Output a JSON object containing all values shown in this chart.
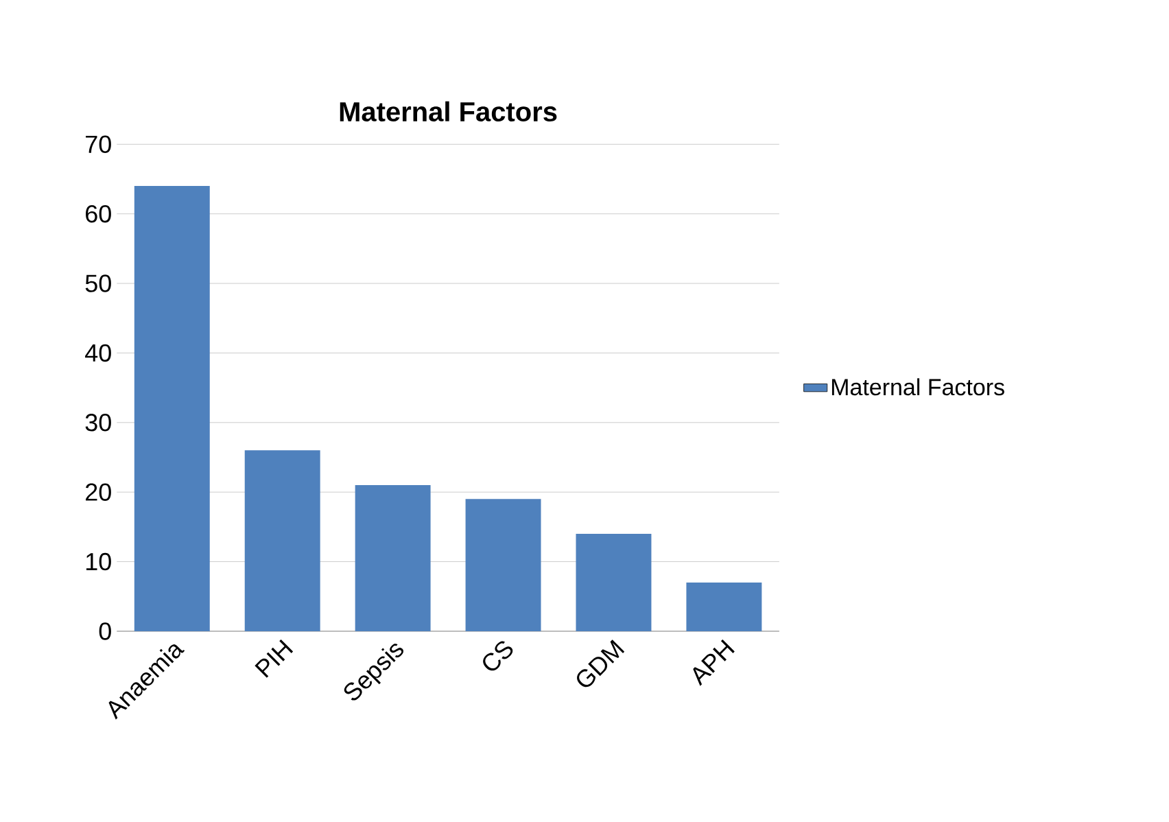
{
  "chart_data": {
    "type": "bar",
    "title": "Maternal Factors",
    "categories": [
      "Anaemia",
      "PIH",
      "Sepsis",
      "CS",
      "GDM",
      "APH"
    ],
    "series": [
      {
        "name": "Maternal Factors",
        "color": "#4f81bd",
        "values": [
          64,
          26,
          21,
          19,
          14,
          7
        ]
      }
    ],
    "ylim": [
      0,
      70
    ],
    "yticks": [
      0,
      10,
      20,
      30,
      40,
      50,
      60,
      70
    ],
    "grid": "y",
    "legend": "right"
  }
}
